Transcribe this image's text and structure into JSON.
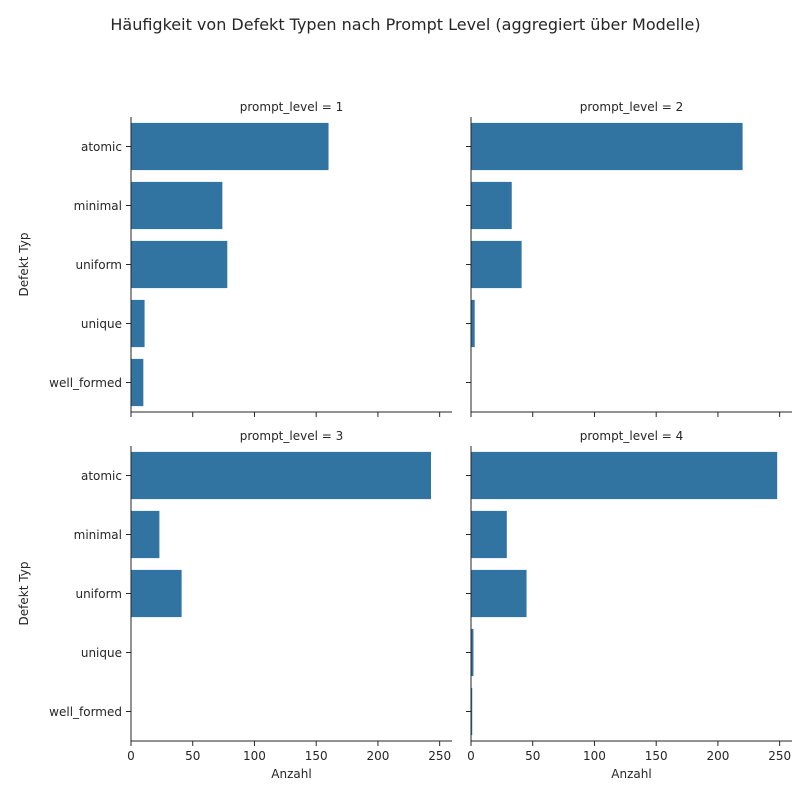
{
  "chart_data": {
    "type": "bar",
    "orientation": "horizontal",
    "title": "Häufigkeit von Defekt Typen nach Prompt Level (aggregiert über Modelle)",
    "xlabel": "Anzahl",
    "ylabel": "Defekt Typ",
    "categories": [
      "atomic",
      "minimal",
      "uniform",
      "unique",
      "well_formed"
    ],
    "xlim": [
      0,
      260
    ],
    "xticks": [
      0,
      50,
      100,
      150,
      200,
      250
    ],
    "bar_color": "#3274a1",
    "grid": false,
    "shared_axes": true,
    "panels": [
      {
        "title": "prompt_level = 1",
        "values": [
          160,
          74,
          78,
          11,
          10
        ]
      },
      {
        "title": "prompt_level = 2",
        "values": [
          220,
          33,
          41,
          3,
          0
        ]
      },
      {
        "title": "prompt_level = 3",
        "values": [
          243,
          23,
          41,
          0,
          0
        ]
      },
      {
        "title": "prompt_level = 4",
        "values": [
          248,
          29,
          45,
          2,
          1
        ]
      }
    ]
  }
}
